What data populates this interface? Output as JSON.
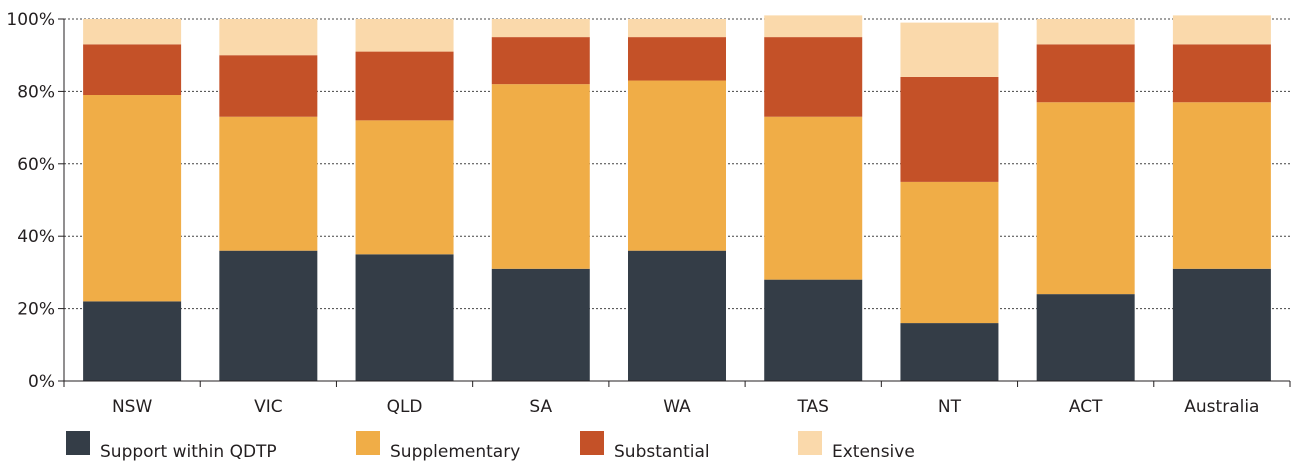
{
  "chart_data": {
    "type": "bar",
    "stacked": true,
    "categories": [
      "NSW",
      "VIC",
      "QLD",
      "SA",
      "WA",
      "TAS",
      "NT",
      "ACT",
      "Australia"
    ],
    "series": [
      {
        "name": "Support within QDTP",
        "color": "#343d47",
        "values": [
          22,
          36,
          35,
          31,
          36,
          28,
          16,
          24,
          31
        ]
      },
      {
        "name": "Supplementary",
        "color": "#f0ad47",
        "values": [
          57,
          37,
          37,
          51,
          47,
          45,
          39,
          53,
          46
        ]
      },
      {
        "name": "Substantial",
        "color": "#c45128",
        "values": [
          14,
          17,
          19,
          13,
          12,
          22,
          29,
          16,
          16
        ]
      },
      {
        "name": "Extensive",
        "color": "#fad9ab",
        "values": [
          7,
          10,
          9,
          5,
          5,
          6,
          15,
          7,
          8
        ]
      }
    ],
    "y_ticks": [
      "0%",
      "20%",
      "40%",
      "60%",
      "80%",
      "100%"
    ],
    "y_tick_values": [
      0,
      20,
      40,
      60,
      80,
      100
    ],
    "ylim": [
      0,
      100
    ],
    "grid": "horizontal dotted",
    "legend_position": "bottom-left"
  }
}
